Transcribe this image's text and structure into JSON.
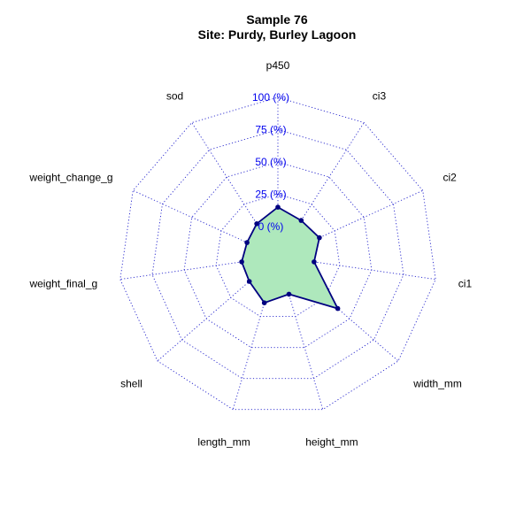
{
  "chart_data": {
    "type": "radar",
    "title": "Sample 76",
    "subtitle": "Site: Purdy, Burley Lagoon",
    "axes": [
      "p450",
      "ci3",
      "ci2",
      "ci1",
      "width_mm",
      "height_mm",
      "length_mm",
      "shell",
      "weight_final_g",
      "weight_change_g",
      "sod"
    ],
    "ring_labels": [
      "0 (%)",
      "25 (%)",
      "50 (%)",
      "75 (%)",
      "100 (%)"
    ],
    "ring_values": [
      0,
      25,
      50,
      75,
      100
    ],
    "range": [
      0,
      100
    ],
    "values": [
      15,
      10,
      12,
      5,
      38,
      7,
      14,
      6,
      5,
      3,
      7
    ],
    "colors": {
      "fill": "#aee8bc",
      "line": "#000080",
      "grid": "#2222cc",
      "ring_label": "#0000ee"
    }
  }
}
